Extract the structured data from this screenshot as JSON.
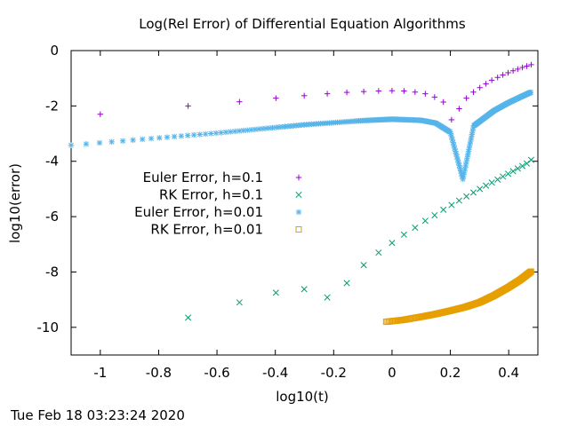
{
  "timestamp": "Tue Feb 18 03:23:24 2020",
  "chart_data": {
    "type": "scatter",
    "title": "Log(Rel Error) of Differential Equation Algorithms",
    "xlabel": "log10(t)",
    "ylabel": "log10(error)",
    "xlim": [
      -1.1,
      0.5
    ],
    "ylim": [
      -11,
      0
    ],
    "xticks": [
      -1,
      -0.8,
      -0.6,
      -0.4,
      -0.2,
      0,
      0.2,
      0.4
    ],
    "xtick_labels": [
      "-1",
      "-0.8",
      "-0.6",
      "-0.4",
      "-0.2",
      "0",
      "0.2",
      "0.4"
    ],
    "yticks": [
      0,
      -2,
      -4,
      -6,
      -8,
      -10
    ],
    "ytick_labels": [
      "0",
      "-2",
      "-4",
      "-6",
      "-8",
      "-10"
    ],
    "grid": false,
    "legend_position": "middle-left",
    "series": [
      {
        "name": "Euler Error, h=0.1",
        "marker": "plus",
        "color": "#9400d3",
        "x": [
          -1.0,
          -0.699,
          -0.523,
          -0.398,
          -0.301,
          -0.222,
          -0.155,
          -0.097,
          -0.046,
          0.0,
          0.041,
          0.079,
          0.114,
          0.146,
          0.176,
          0.204,
          0.23,
          0.255,
          0.279,
          0.301,
          0.322,
          0.342,
          0.362,
          0.38,
          0.398,
          0.415,
          0.431,
          0.447,
          0.462,
          0.477
        ],
        "y": [
          -2.3,
          -2.0,
          -1.85,
          -1.72,
          -1.63,
          -1.56,
          -1.51,
          -1.48,
          -1.46,
          -1.45,
          -1.46,
          -1.5,
          -1.56,
          -1.68,
          -1.86,
          -2.5,
          -2.1,
          -1.72,
          -1.5,
          -1.34,
          -1.2,
          -1.07,
          -0.97,
          -0.88,
          -0.8,
          -0.73,
          -0.67,
          -0.61,
          -0.56,
          -0.51
        ]
      },
      {
        "name": "RK Error, h=0.1",
        "marker": "x",
        "color": "#009e73",
        "x": [
          -0.699,
          -0.523,
          -0.398,
          -0.301,
          -0.222,
          -0.155,
          -0.097,
          -0.046,
          0.0,
          0.041,
          0.079,
          0.114,
          0.146,
          0.176,
          0.204,
          0.23,
          0.255,
          0.279,
          0.301,
          0.322,
          0.342,
          0.362,
          0.38,
          0.398,
          0.415,
          0.431,
          0.447,
          0.462,
          0.477
        ],
        "y": [
          -9.65,
          -9.1,
          -8.75,
          -8.62,
          -8.92,
          -8.4,
          -7.75,
          -7.3,
          -6.95,
          -6.65,
          -6.4,
          -6.15,
          -5.95,
          -5.75,
          -5.58,
          -5.42,
          -5.27,
          -5.13,
          -5.0,
          -4.88,
          -4.77,
          -4.66,
          -4.55,
          -4.45,
          -4.36,
          -4.26,
          -4.17,
          -4.08,
          -3.95
        ]
      },
      {
        "name": "Euler Error, h=0.01",
        "marker": "star",
        "color": "#56b4e9",
        "x_range": [
          -1.1,
          0.477
        ],
        "dip_center": 0.243,
        "baseline": [
          [
            -1.1,
            -3.42
          ],
          [
            -0.6,
            -2.98
          ],
          [
            -0.3,
            -2.68
          ],
          [
            -0.1,
            -2.53
          ],
          [
            0.0,
            -2.48
          ],
          [
            0.1,
            -2.52
          ],
          [
            0.15,
            -2.62
          ],
          [
            0.2,
            -2.95
          ],
          [
            0.243,
            -4.65
          ],
          [
            0.28,
            -2.72
          ],
          [
            0.35,
            -2.17
          ],
          [
            0.4,
            -1.88
          ],
          [
            0.44,
            -1.68
          ],
          [
            0.477,
            -1.5
          ]
        ]
      },
      {
        "name": "RK Error, h=0.01",
        "marker": "square",
        "color": "#e69f00",
        "x_range": [
          -0.02,
          0.477
        ],
        "baseline": [
          [
            -0.02,
            -9.8
          ],
          [
            0.04,
            -9.73
          ],
          [
            0.1,
            -9.62
          ],
          [
            0.15,
            -9.52
          ],
          [
            0.2,
            -9.4
          ],
          [
            0.25,
            -9.27
          ],
          [
            0.3,
            -9.1
          ],
          [
            0.35,
            -8.85
          ],
          [
            0.4,
            -8.55
          ],
          [
            0.44,
            -8.28
          ],
          [
            0.477,
            -7.98
          ]
        ]
      }
    ]
  }
}
